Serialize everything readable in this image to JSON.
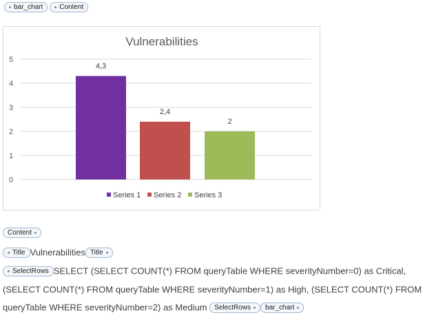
{
  "tags": {
    "bar_chart": "bar_chart",
    "content": "Content",
    "title": "Title",
    "select_rows": "SelectRows"
  },
  "title_text": "Vulnerabilities",
  "query_text": "SELECT (SELECT COUNT(*) FROM queryTable WHERE severityNumber=0) as Critical, (SELECT COUNT(*) FROM queryTable WHERE severityNumber=1) as High, (SELECT COUNT(*) FROM queryTable WHERE severityNumber=2) as Medium",
  "colors": {
    "series_1": "#7030a0",
    "series_2": "#c0504d",
    "series_3": "#9bbb59",
    "gridline": "#d9d9d9",
    "tag_border": "#9fb6cd"
  },
  "chart_data": {
    "type": "bar",
    "title": "Vulnerabilities",
    "xlabel": "",
    "ylabel": "",
    "ylim": [
      0,
      5
    ],
    "yticks": [
      0,
      1,
      2,
      3,
      4,
      5
    ],
    "grid": true,
    "legend": "bottom",
    "series": [
      {
        "name": "Series 1",
        "values": [
          4.3
        ],
        "label": "4,3",
        "color": "#7030a0"
      },
      {
        "name": "Series 2",
        "values": [
          2.4
        ],
        "label": "2,4",
        "color": "#c0504d"
      },
      {
        "name": "Series 3",
        "values": [
          2
        ],
        "label": "2",
        "color": "#9bbb59"
      }
    ]
  }
}
